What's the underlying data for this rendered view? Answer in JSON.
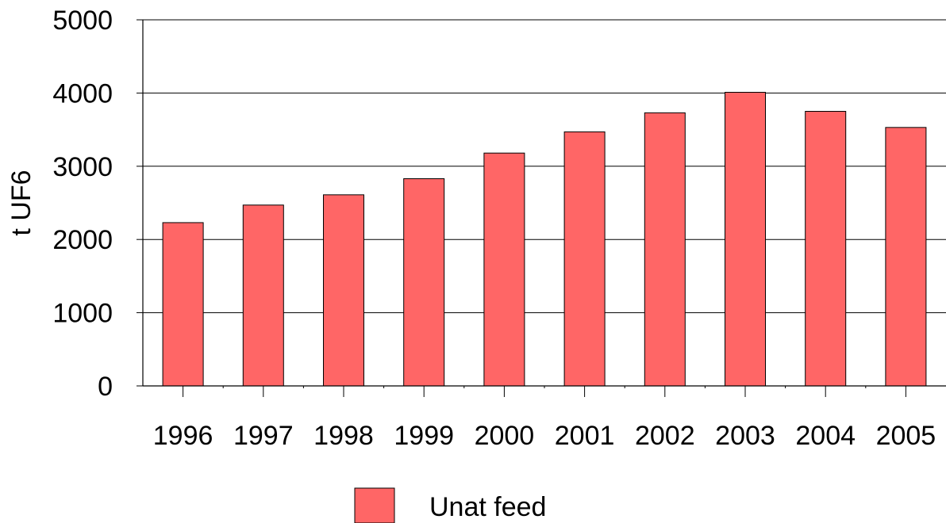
{
  "chart_data": {
    "type": "bar",
    "categories": [
      "1996",
      "1997",
      "1998",
      "1999",
      "2000",
      "2001",
      "2002",
      "2003",
      "2004",
      "2005"
    ],
    "series": [
      {
        "name": "Unat feed",
        "values": [
          2230,
          2470,
          2610,
          2830,
          3180,
          3470,
          3730,
          4010,
          3750,
          3530
        ],
        "color": "#ff6666"
      }
    ],
    "ylabel": "t UF6",
    "xlabel": "",
    "title": "",
    "ylim": [
      0,
      5000
    ],
    "yticks": [
      0,
      1000,
      2000,
      3000,
      4000,
      5000
    ],
    "grid": true,
    "legend_position": "bottom"
  }
}
